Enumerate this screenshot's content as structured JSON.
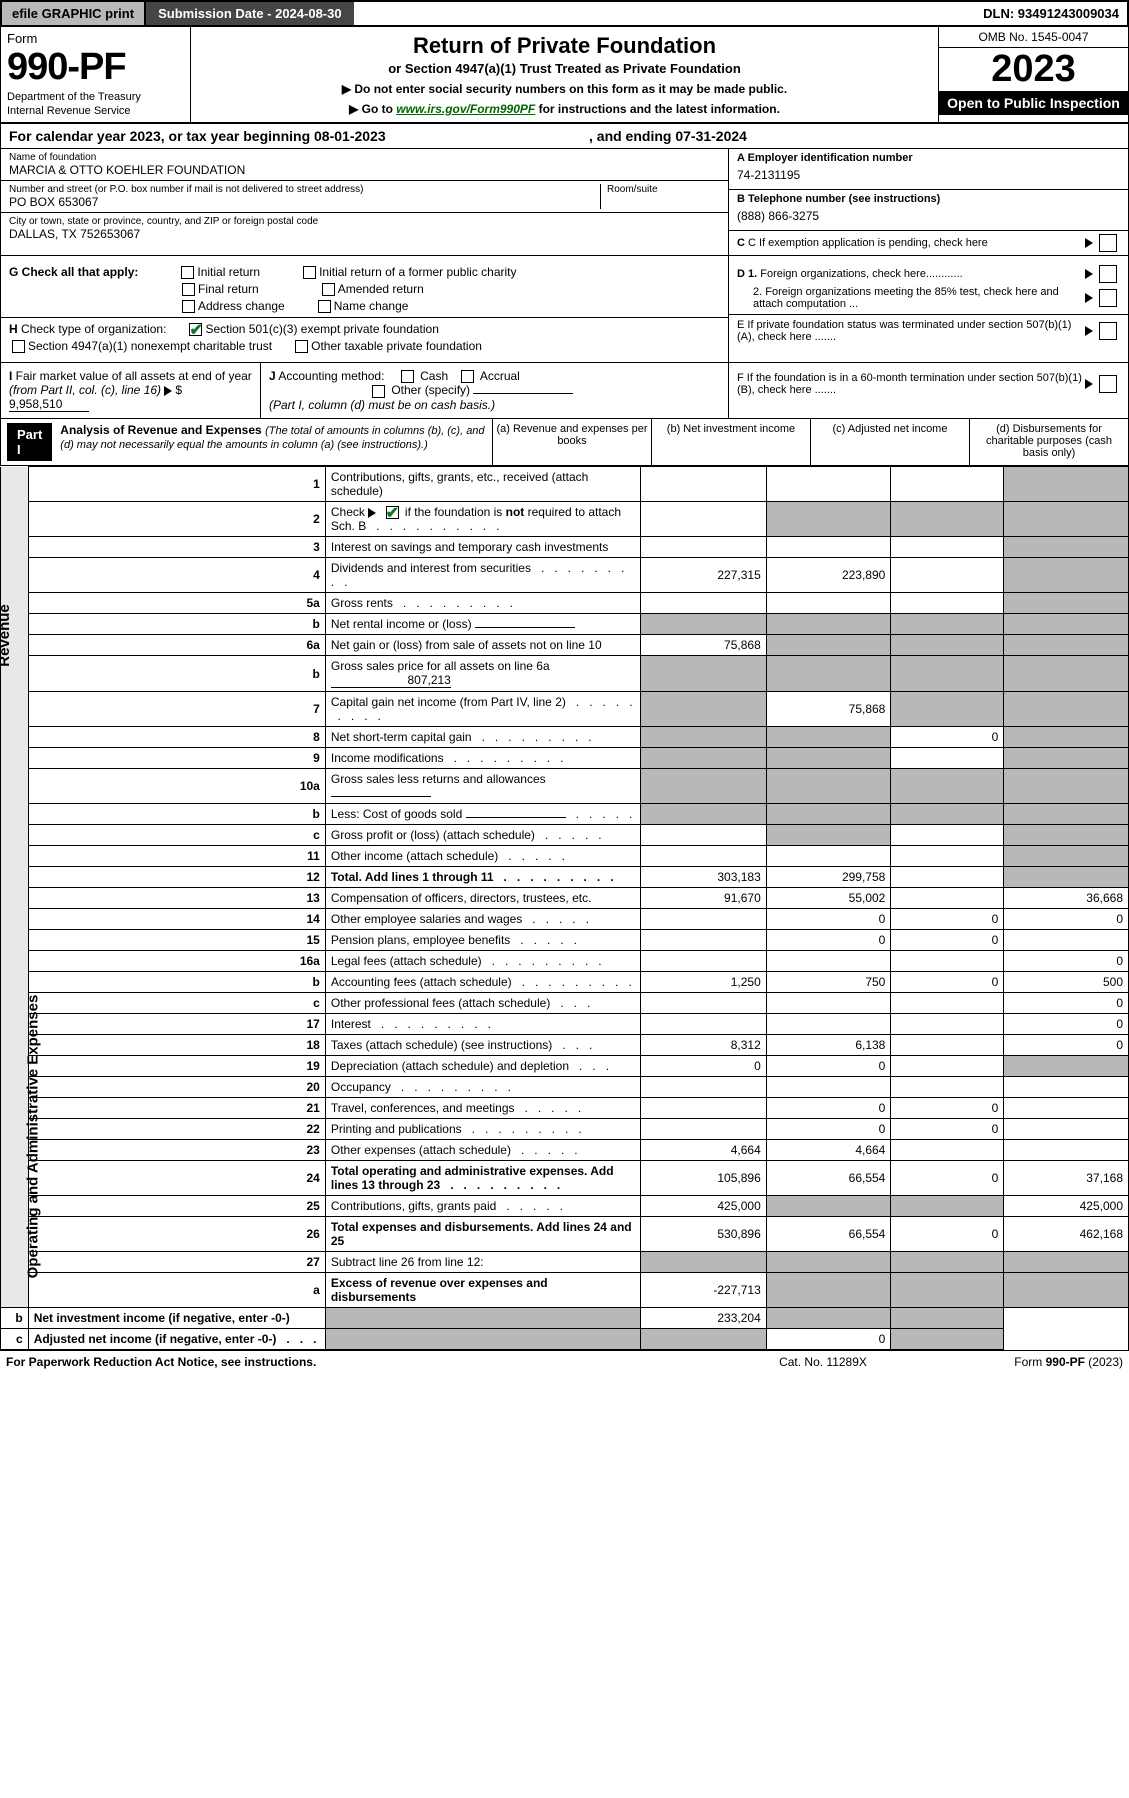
{
  "topbar": {
    "efile": "efile GRAPHIC print",
    "subdate_label": "Submission Date - 2024-08-30",
    "dln": "DLN: 93491243009034"
  },
  "header": {
    "form": "Form",
    "formnum": "990-PF",
    "dept": "Department of the Treasury",
    "irs": "Internal Revenue Service",
    "title": "Return of Private Foundation",
    "subtitle": "or Section 4947(a)(1) Trust Treated as Private Foundation",
    "note1": "▶ Do not enter social security numbers on this form as it may be made public.",
    "note2": "▶ Go to ",
    "link": "www.irs.gov/Form990PF",
    "note2b": " for instructions and the latest information.",
    "omb": "OMB No. 1545-0047",
    "year": "2023",
    "open": "Open to Public Inspection"
  },
  "calyear": {
    "text": "For calendar year 2023, or tax year beginning 08-01-2023",
    "end": ", and ending 07-31-2024"
  },
  "info": {
    "name_label": "Name of foundation",
    "name": "MARCIA & OTTO KOEHLER FOUNDATION",
    "addr_label": "Number and street (or P.O. box number if mail is not delivered to street address)",
    "addr": "PO BOX 653067",
    "room_label": "Room/suite",
    "city_label": "City or town, state or province, country, and ZIP or foreign postal code",
    "city": "DALLAS, TX  752653067",
    "a_label": "A Employer identification number",
    "a_val": "74-2131195",
    "b_label": "B Telephone number (see instructions)",
    "b_val": "(888) 866-3275",
    "c_label": "C If exemption application is pending, check here"
  },
  "g": {
    "label": "G Check all that apply:",
    "initial": "Initial return",
    "initial_former": "Initial return of a former public charity",
    "final": "Final return",
    "amended": "Amended return",
    "addrchg": "Address change",
    "namechg": "Name change",
    "d1": "D 1. Foreign organizations, check here............",
    "d2": "2. Foreign organizations meeting the 85% test, check here and attach computation ...",
    "e": "E  If private foundation status was terminated under section 507(b)(1)(A), check here .......",
    "f": "F  If the foundation is in a 60-month termination under section 507(b)(1)(B), check here ......."
  },
  "h": {
    "label": "H Check type of organization:",
    "a": "Section 501(c)(3) exempt private foundation",
    "b": "Section 4947(a)(1) nonexempt charitable trust",
    "c": "Other taxable private foundation"
  },
  "i": {
    "label": "I Fair market value of all assets at end of year (from Part II, col. (c), line 16)",
    "val": "9,958,510"
  },
  "j": {
    "label": "J Accounting method:",
    "cash": "Cash",
    "accrual": "Accrual",
    "other": "Other (specify)",
    "note": "(Part I, column (d) must be on cash basis.)"
  },
  "part1": {
    "label": "Part I",
    "title": "Analysis of Revenue and Expenses",
    "desc": "(The total of amounts in columns (b), (c), and (d) may not necessarily equal the amounts in column (a) (see instructions).)",
    "col_a": "(a)   Revenue and expenses per books",
    "col_b": "(b)   Net investment income",
    "col_c": "(c)   Adjusted net income",
    "col_d": "(d)   Disbursements for charitable purposes (cash basis only)"
  },
  "side": {
    "revenue": "Revenue",
    "opex": "Operating and Administrative Expenses"
  },
  "rows": [
    {
      "n": "1",
      "l": "Contributions, gifts, grants, etc., received (attach schedule)",
      "a": "",
      "b": "",
      "c": "",
      "d": "",
      "d_sh": true
    },
    {
      "n": "2",
      "l": "Check ▶ ☑ if the foundation is not required to attach Sch. B",
      "a": "",
      "b": "",
      "c": "",
      "d": "",
      "b_sh": true,
      "c_sh": true,
      "d_sh": true,
      "ck": true
    },
    {
      "n": "3",
      "l": "Interest on savings and temporary cash investments",
      "a": "",
      "b": "",
      "c": "",
      "d": "",
      "d_sh": true
    },
    {
      "n": "4",
      "l": "Dividends and interest from securities",
      "a": "227,315",
      "b": "223,890",
      "c": "",
      "d": "",
      "d_sh": true,
      "dots": true
    },
    {
      "n": "5a",
      "l": "Gross rents",
      "a": "",
      "b": "",
      "c": "",
      "d": "",
      "d_sh": true,
      "dots": true
    },
    {
      "n": "b",
      "l": "Net rental income or (loss)",
      "a": "",
      "b": "",
      "c": "",
      "d": "",
      "inline": true,
      "b_sh": true,
      "c_sh": true,
      "d_sh": true,
      "a_sh": true
    },
    {
      "n": "6a",
      "l": "Net gain or (loss) from sale of assets not on line 10",
      "a": "75,868",
      "b": "",
      "c": "",
      "d": "",
      "b_sh": true,
      "c_sh": true,
      "d_sh": true
    },
    {
      "n": "b",
      "l": "Gross sales price for all assets on line 6a",
      "a": "",
      "b": "",
      "c": "",
      "d": "",
      "inline_val": "807,213",
      "b_sh": true,
      "c_sh": true,
      "d_sh": true,
      "a_sh": true
    },
    {
      "n": "7",
      "l": "Capital gain net income (from Part IV, line 2)",
      "a": "",
      "b": "75,868",
      "c": "",
      "d": "",
      "a_sh": true,
      "c_sh": true,
      "d_sh": true,
      "dots": true
    },
    {
      "n": "8",
      "l": "Net short-term capital gain",
      "a": "",
      "b": "",
      "c": "0",
      "d": "",
      "a_sh": true,
      "b_sh": true,
      "d_sh": true,
      "dots": true
    },
    {
      "n": "9",
      "l": "Income modifications",
      "a": "",
      "b": "",
      "c": "",
      "d": "",
      "a_sh": true,
      "b_sh": true,
      "d_sh": true,
      "dots": true
    },
    {
      "n": "10a",
      "l": "Gross sales less returns and allowances",
      "a": "",
      "b": "",
      "c": "",
      "d": "",
      "inline": true,
      "b_sh": true,
      "c_sh": true,
      "d_sh": true,
      "a_sh": true
    },
    {
      "n": "b",
      "l": "Less: Cost of goods sold",
      "a": "",
      "b": "",
      "c": "",
      "d": "",
      "inline": true,
      "b_sh": true,
      "c_sh": true,
      "d_sh": true,
      "a_sh": true,
      "dots5": true
    },
    {
      "n": "c",
      "l": "Gross profit or (loss) (attach schedule)",
      "a": "",
      "b": "",
      "c": "",
      "d": "",
      "b_sh": true,
      "d_sh": true,
      "dots5": true
    },
    {
      "n": "11",
      "l": "Other income (attach schedule)",
      "a": "",
      "b": "",
      "c": "",
      "d": "",
      "d_sh": true,
      "dots5": true
    },
    {
      "n": "12",
      "l": "Total. Add lines 1 through 11",
      "a": "303,183",
      "b": "299,758",
      "c": "",
      "d": "",
      "bold": true,
      "d_sh": true,
      "dots": true
    },
    {
      "n": "13",
      "l": "Compensation of officers, directors, trustees, etc.",
      "a": "91,670",
      "b": "55,002",
      "c": "",
      "d": "36,668"
    },
    {
      "n": "14",
      "l": "Other employee salaries and wages",
      "a": "",
      "b": "0",
      "c": "0",
      "d": "0",
      "dots5": true
    },
    {
      "n": "15",
      "l": "Pension plans, employee benefits",
      "a": "",
      "b": "0",
      "c": "0",
      "d": "",
      "dots5": true
    },
    {
      "n": "16a",
      "l": "Legal fees (attach schedule)",
      "a": "",
      "b": "",
      "c": "",
      "d": "0",
      "dots": true
    },
    {
      "n": "b",
      "l": "Accounting fees (attach schedule)",
      "a": "1,250",
      "b": "750",
      "c": "0",
      "d": "500",
      "dots": true
    },
    {
      "n": "c",
      "l": "Other professional fees (attach schedule)",
      "a": "",
      "b": "",
      "c": "",
      "d": "0",
      "dots3": true
    },
    {
      "n": "17",
      "l": "Interest",
      "a": "",
      "b": "",
      "c": "",
      "d": "0",
      "dots": true
    },
    {
      "n": "18",
      "l": "Taxes (attach schedule) (see instructions)",
      "a": "8,312",
      "b": "6,138",
      "c": "",
      "d": "0",
      "dots3": true
    },
    {
      "n": "19",
      "l": "Depreciation (attach schedule) and depletion",
      "a": "0",
      "b": "0",
      "c": "",
      "d": "",
      "d_sh": true,
      "dots3": true
    },
    {
      "n": "20",
      "l": "Occupancy",
      "a": "",
      "b": "",
      "c": "",
      "d": "",
      "dots": true
    },
    {
      "n": "21",
      "l": "Travel, conferences, and meetings",
      "a": "",
      "b": "0",
      "c": "0",
      "d": "",
      "dots5": true
    },
    {
      "n": "22",
      "l": "Printing and publications",
      "a": "",
      "b": "0",
      "c": "0",
      "d": "",
      "dots": true
    },
    {
      "n": "23",
      "l": "Other expenses (attach schedule)",
      "a": "4,664",
      "b": "4,664",
      "c": "",
      "d": "",
      "dots5": true
    },
    {
      "n": "24",
      "l": "Total operating and administrative expenses. Add lines 13 through 23",
      "a": "105,896",
      "b": "66,554",
      "c": "0",
      "d": "37,168",
      "bold": true,
      "dots": true
    },
    {
      "n": "25",
      "l": "Contributions, gifts, grants paid",
      "a": "425,000",
      "b": "",
      "c": "",
      "d": "425,000",
      "b_sh": true,
      "c_sh": true,
      "dots5": true
    },
    {
      "n": "26",
      "l": "Total expenses and disbursements. Add lines 24 and 25",
      "a": "530,896",
      "b": "66,554",
      "c": "0",
      "d": "462,168",
      "bold": true
    },
    {
      "n": "27",
      "l": "Subtract line 26 from line 12:",
      "a": "",
      "b": "",
      "c": "",
      "d": "",
      "a_sh": true,
      "b_sh": true,
      "c_sh": true,
      "d_sh": true
    },
    {
      "n": "a",
      "l": "Excess of revenue over expenses and disbursements",
      "a": "-227,713",
      "b": "",
      "c": "",
      "d": "",
      "bold": true,
      "b_sh": true,
      "c_sh": true,
      "d_sh": true
    },
    {
      "n": "b",
      "l": "Net investment income (if negative, enter -0-)",
      "a": "",
      "b": "233,204",
      "c": "",
      "d": "",
      "bold": true,
      "a_sh": true,
      "c_sh": true,
      "d_sh": true
    },
    {
      "n": "c",
      "l": "Adjusted net income (if negative, enter -0-)",
      "a": "",
      "b": "",
      "c": "0",
      "d": "",
      "bold": true,
      "a_sh": true,
      "b_sh": true,
      "d_sh": true,
      "dots3": true
    }
  ],
  "footer": {
    "a": "For Paperwork Reduction Act Notice, see instructions.",
    "b": "Cat. No. 11289X",
    "c": "Form 990-PF (2023)"
  }
}
